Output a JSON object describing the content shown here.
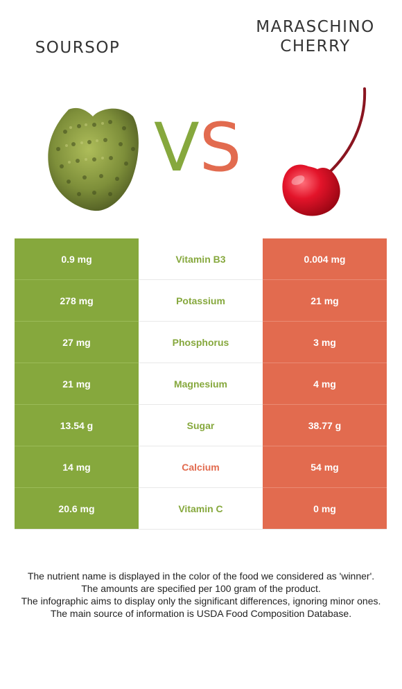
{
  "left_food": {
    "name": "SOURSOP",
    "color": "#86a83d",
    "image_icon": "soursop-fruit-icon"
  },
  "right_food": {
    "name": "MARASCHINO\nCHERRY",
    "color": "#e26b4f",
    "image_icon": "cherry-fruit-icon"
  },
  "vs": {
    "v": "V",
    "s": "S"
  },
  "rows": [
    {
      "left": "0.9 mg",
      "nutrient": "Vitamin B3",
      "right": "0.004 mg",
      "winner": "left"
    },
    {
      "left": "278 mg",
      "nutrient": "Potassium",
      "right": "21 mg",
      "winner": "left"
    },
    {
      "left": "27 mg",
      "nutrient": "Phosphorus",
      "right": "3 mg",
      "winner": "left"
    },
    {
      "left": "21 mg",
      "nutrient": "Magnesium",
      "right": "4 mg",
      "winner": "left"
    },
    {
      "left": "13.54 g",
      "nutrient": "Sugar",
      "right": "38.77 g",
      "winner": "left"
    },
    {
      "left": "14 mg",
      "nutrient": "Calcium",
      "right": "54 mg",
      "winner": "right"
    },
    {
      "left": "20.6 mg",
      "nutrient": "Vitamin C",
      "right": "0 mg",
      "winner": "left"
    }
  ],
  "footnotes": [
    "The nutrient name is displayed in the color of the food we considered as 'winner'.",
    "The amounts are specified per 100 gram of the product.",
    "The infographic aims to display only the significant differences, ignoring minor ones.",
    "The main source of information is USDA Food Composition Database."
  ]
}
